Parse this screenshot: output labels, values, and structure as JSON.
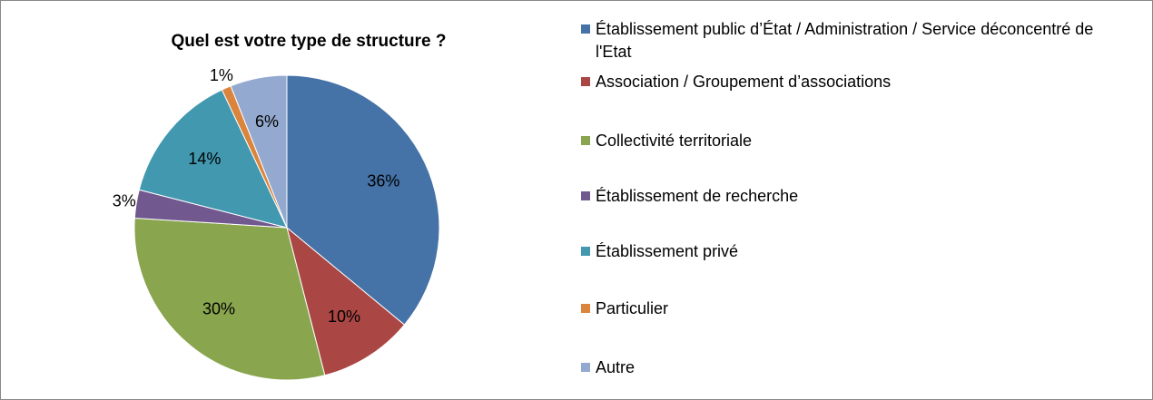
{
  "chart_data": {
    "type": "pie",
    "title": "Quel est votre type de structure ?",
    "categories": [
      "Établissement public d’État / Administration / Service déconcentré de l'Etat",
      "Association / Groupement d’associations",
      "Collectivité territoriale",
      "Établissement de recherche",
      "Établissement privé",
      "Particulier",
      "Autre"
    ],
    "values": [
      36,
      10,
      30,
      3,
      14,
      1,
      6
    ],
    "value_labels": [
      "36%",
      "10%",
      "30%",
      "3%",
      "14%",
      "1%",
      "6%"
    ],
    "colors": [
      "#4572a7",
      "#aa4643",
      "#89a54e",
      "#71588f",
      "#4198af",
      "#db843d",
      "#93a9cf"
    ],
    "legend": "right"
  }
}
